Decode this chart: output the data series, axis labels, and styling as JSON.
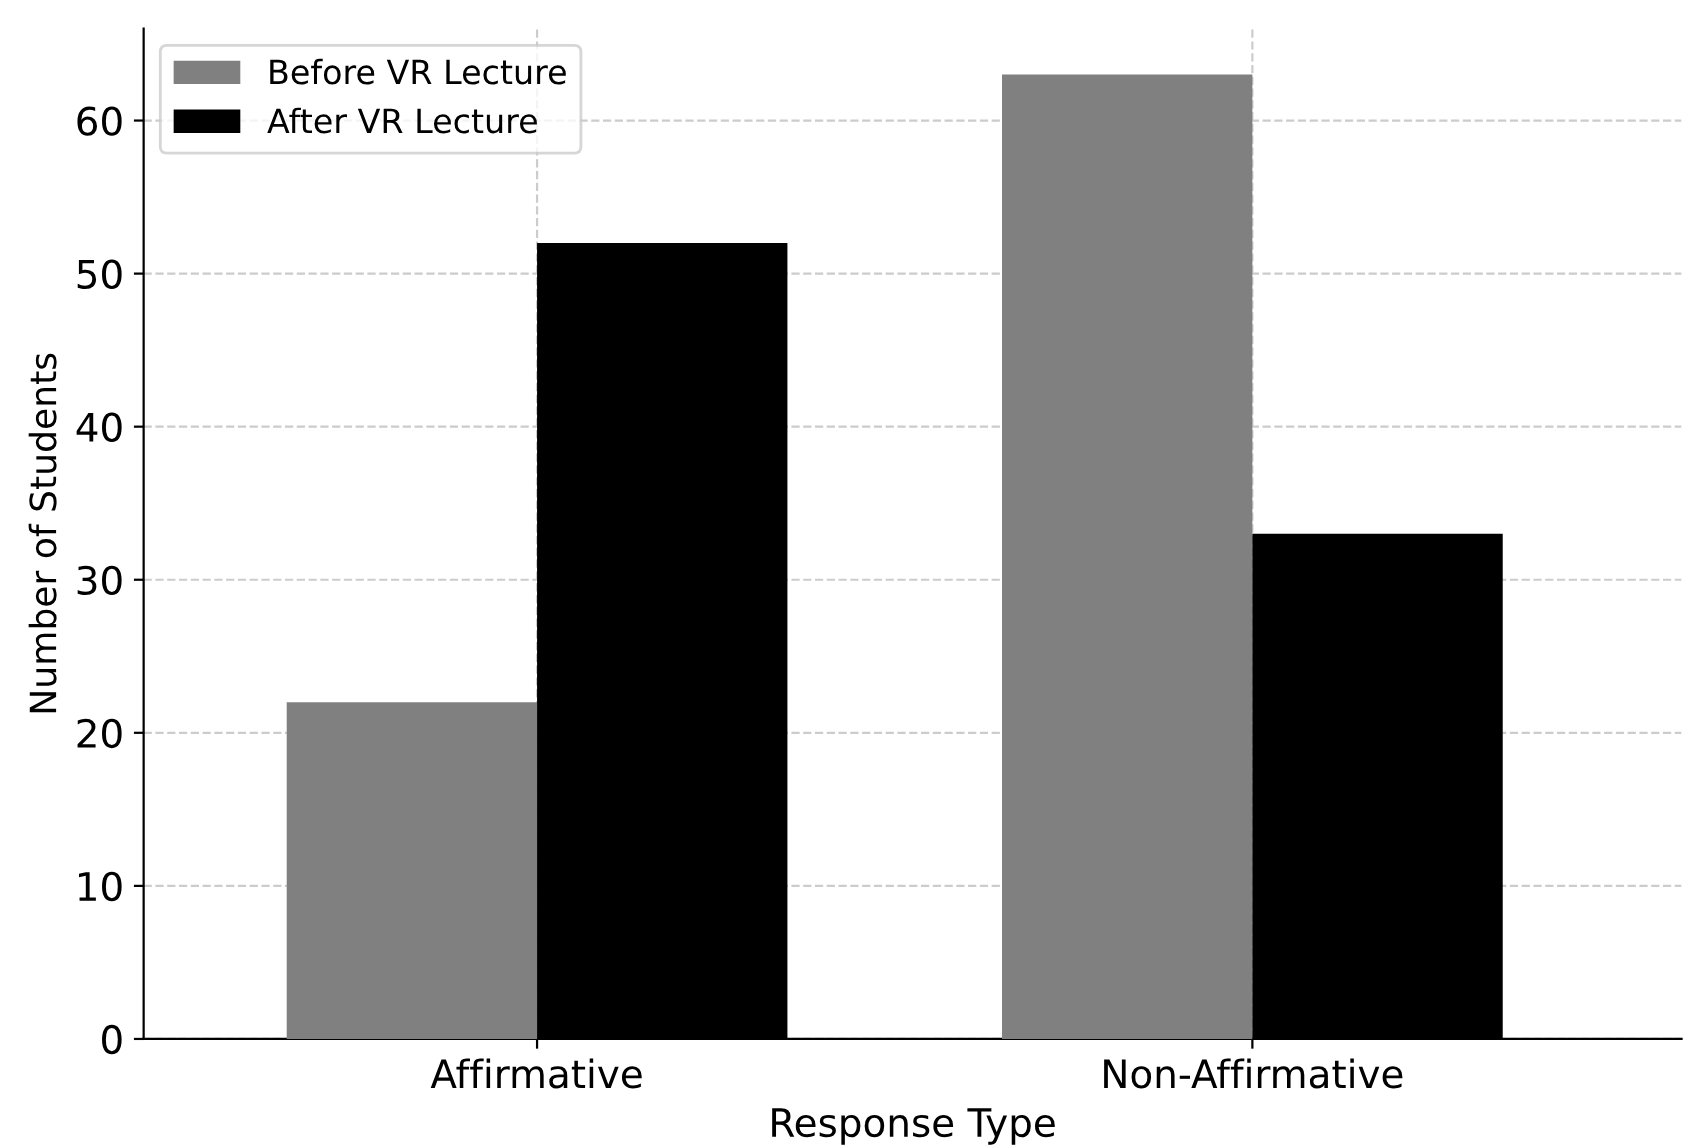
{
  "chart_data": {
    "type": "bar",
    "xlabel": "Response Type",
    "ylabel": "Number of Students",
    "categories": [
      "Affirmative",
      "Non-Affirmative"
    ],
    "series": [
      {
        "name": "Before VR Lecture",
        "color": "#808080",
        "values": [
          22,
          63
        ]
      },
      {
        "name": "After VR Lecture",
        "color": "#000000",
        "values": [
          52,
          33
        ]
      }
    ],
    "ylim": [
      0,
      66
    ],
    "yticks": [
      0,
      10,
      20,
      30,
      40,
      50,
      60
    ],
    "grid": true,
    "legend": "top left"
  }
}
